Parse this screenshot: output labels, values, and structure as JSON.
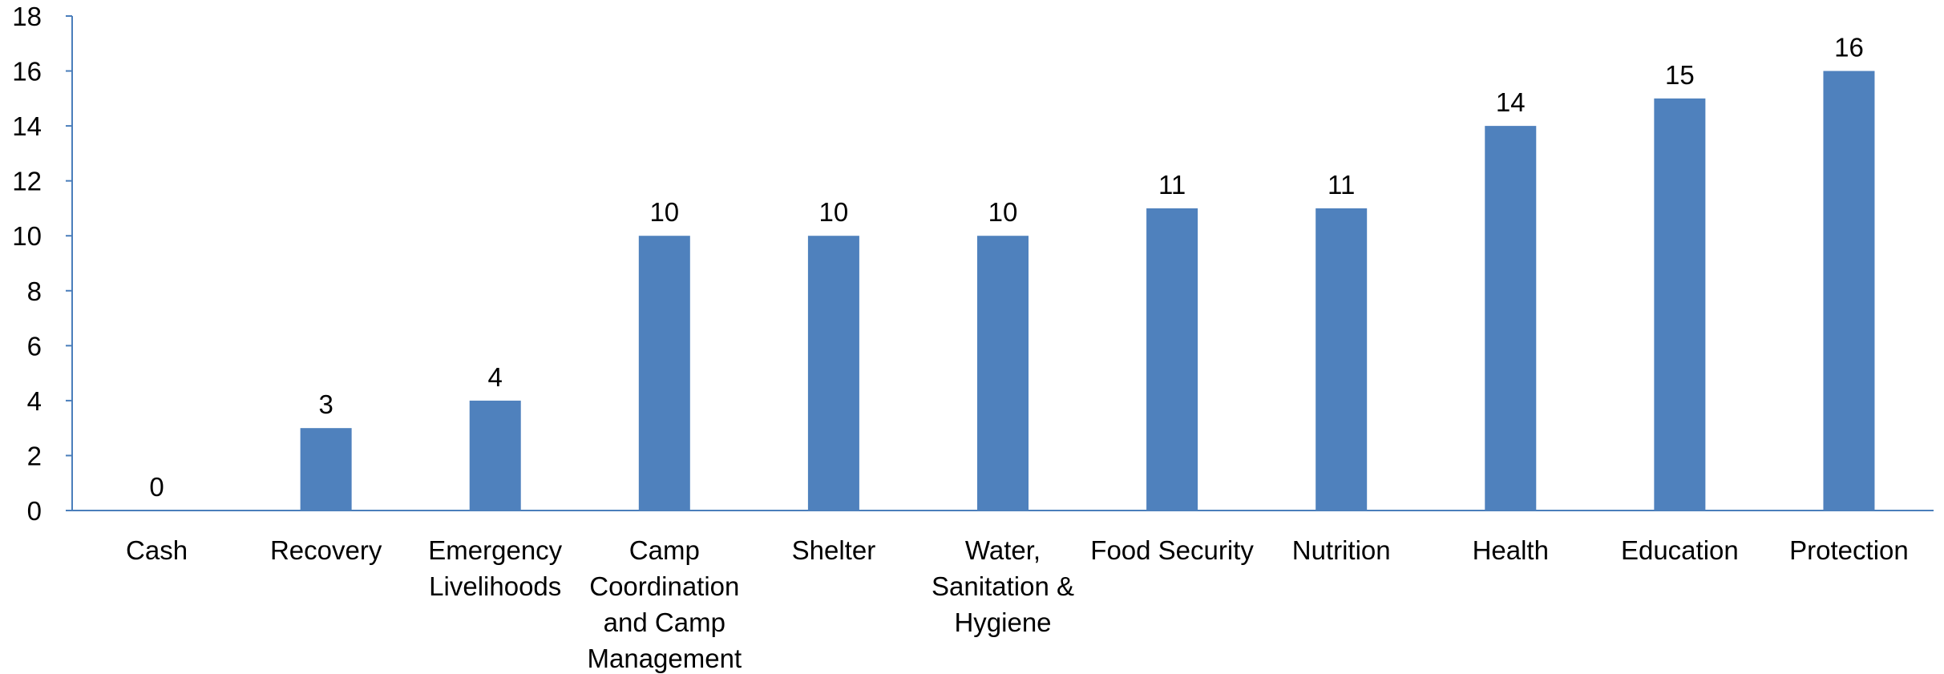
{
  "chart_data": {
    "type": "bar",
    "title": "",
    "xlabel": "",
    "ylabel": "",
    "categories": [
      [
        "Cash"
      ],
      [
        "Recovery"
      ],
      [
        "Emergency",
        "Livelihoods"
      ],
      [
        "Camp",
        "Coordination",
        "and Camp",
        "Management"
      ],
      [
        "Shelter"
      ],
      [
        "Water,",
        "Sanitation &",
        "Hygiene"
      ],
      [
        "Food Security"
      ],
      [
        "Nutrition"
      ],
      [
        "Health"
      ],
      [
        "Education"
      ],
      [
        "Protection"
      ]
    ],
    "values": [
      0,
      3,
      4,
      10,
      10,
      10,
      11,
      11,
      14,
      15,
      16
    ],
    "data_labels": [
      "0",
      "3",
      "4",
      "10",
      "10",
      "10",
      "11",
      "11",
      "14",
      "15",
      "16"
    ],
    "ylim": [
      0,
      18
    ],
    "yticks": [
      0,
      2,
      4,
      6,
      8,
      10,
      12,
      14,
      16,
      18
    ],
    "grid": false,
    "legend": "none",
    "colors": {
      "bar": "#4F81BD",
      "axis": "#4A7EBB",
      "text": "#000000"
    }
  }
}
